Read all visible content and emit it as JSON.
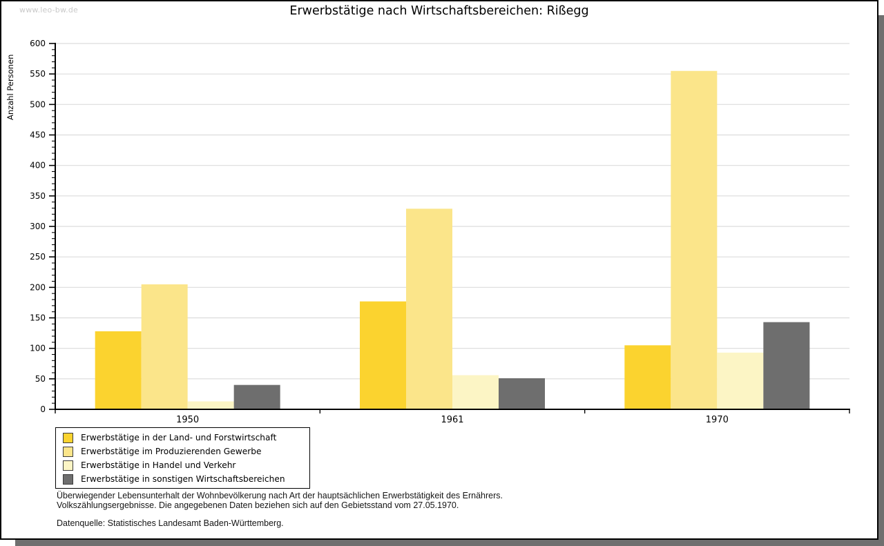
{
  "window": {
    "watermark": "www.leo-bw.de"
  },
  "chart_data": {
    "type": "bar",
    "title": "Erwerbstätige nach Wirtschaftsbereichen: Rißegg",
    "ylabel": "Anzahl Personen",
    "xlabel": "",
    "ylim": [
      0,
      600
    ],
    "ytick_major": 50,
    "ytick_minor": 10,
    "grid": "horizontal-major-lines",
    "legend_position": "bottom-left-box",
    "categories": [
      "1950",
      "1961",
      "1970"
    ],
    "series": [
      {
        "name": "Erwerbstätige in der Land- und Forstwirtschaft",
        "color": "#fbd32f",
        "values": [
          128,
          177,
          105
        ]
      },
      {
        "name": "Erwerbstätige im Produzierenden Gewerbe",
        "color": "#fbe58a",
        "values": [
          205,
          329,
          555
        ]
      },
      {
        "name": "Erwerbstätige in Handel und Verkehr",
        "color": "#fcf5c5",
        "values": [
          13,
          56,
          93
        ]
      },
      {
        "name": "Erwerbstätige in sonstigen Wirtschaftsbereichen",
        "color": "#6e6e6e",
        "values": [
          40,
          51,
          143
        ]
      }
    ]
  },
  "footnotes": {
    "line1": "Überwiegender Lebensunterhalt der Wohnbevölkerung nach Art der hauptsächlichen Erwerbstätigkeit des Ernährers.",
    "line2": "Volkszählungsergebnisse. Die angegebenen Daten beziehen sich auf den Gebietsstand vom 27.05.1970.",
    "source": "Datenquelle: Statistisches Landesamt Baden-Württemberg."
  },
  "style_colors": {
    "grid": "#dcdcdc",
    "axis": "#000000",
    "shadow": "#6f6f6f",
    "watermark": "#c9c9c9",
    "panel_border": "#000000"
  }
}
